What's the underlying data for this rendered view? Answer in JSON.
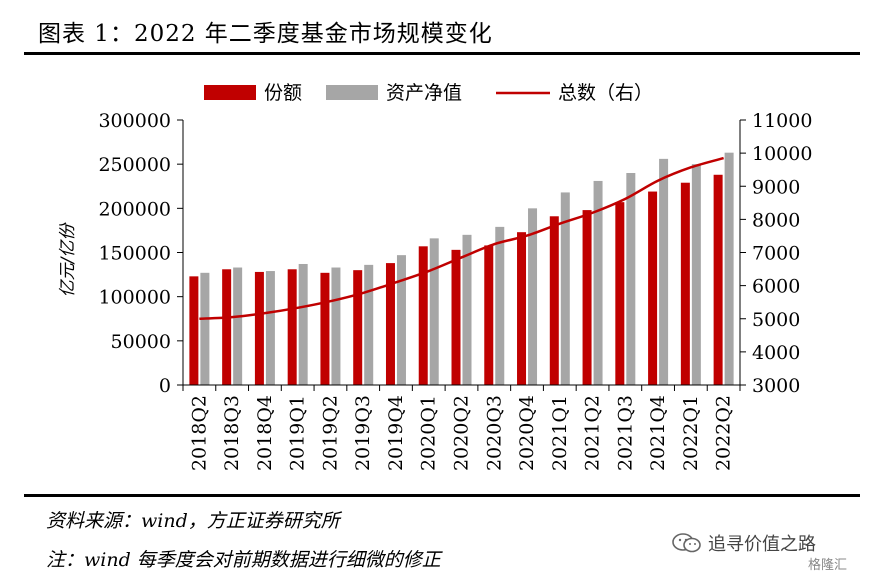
{
  "header": {
    "title": "图表 1：2022 年二季度基金市场规模变化"
  },
  "footer": {
    "source": "资料来源：wind，方正证券研究所",
    "note": "注：wind 每季度会对前期数据进行细微的修正"
  },
  "watermark": {
    "text": "追寻价值之路",
    "brand": "格隆汇",
    "icon": "wechat-icon"
  },
  "colors": {
    "shares": "#c00000",
    "nav": "#a6a6a6",
    "total": "#c00000"
  },
  "chart_data": {
    "type": "bar",
    "title": "",
    "xlabel": "",
    "ylabel": "亿元/亿份",
    "categories": [
      "2018Q2",
      "2018Q3",
      "2018Q4",
      "2019Q1",
      "2019Q2",
      "2019Q3",
      "2019Q4",
      "2020Q1",
      "2020Q2",
      "2020Q3",
      "2020Q4",
      "2021Q1",
      "2021Q2",
      "2021Q3",
      "2021Q4",
      "2022Q1",
      "2022Q2"
    ],
    "series": [
      {
        "name": "份额",
        "type": "bar",
        "axis": "left",
        "values": [
          123000,
          131000,
          128000,
          131000,
          127000,
          130000,
          138000,
          157000,
          153000,
          158000,
          173000,
          191000,
          198000,
          207000,
          219000,
          229000,
          238000
        ]
      },
      {
        "name": "资产净值",
        "type": "bar",
        "axis": "left",
        "values": [
          127000,
          133000,
          129000,
          137000,
          133000,
          136000,
          147000,
          166000,
          170000,
          179000,
          200000,
          218000,
          231000,
          240000,
          256000,
          250000,
          263000
        ]
      },
      {
        "name": "总数（右）",
        "type": "line",
        "axis": "right",
        "values": [
          5000,
          5050,
          5170,
          5330,
          5530,
          5780,
          6100,
          6440,
          6850,
          7250,
          7510,
          7870,
          8200,
          8620,
          9170,
          9570,
          9850
        ]
      }
    ],
    "ylim": [
      0,
      300000
    ],
    "yticks": [
      "0",
      "50000",
      "100000",
      "150000",
      "200000",
      "250000",
      "300000"
    ],
    "y2lim": [
      3000,
      11000
    ],
    "y2ticks": [
      "3000",
      "4000",
      "5000",
      "6000",
      "7000",
      "8000",
      "9000",
      "10000",
      "11000"
    ],
    "legend": "top",
    "grid": false
  }
}
